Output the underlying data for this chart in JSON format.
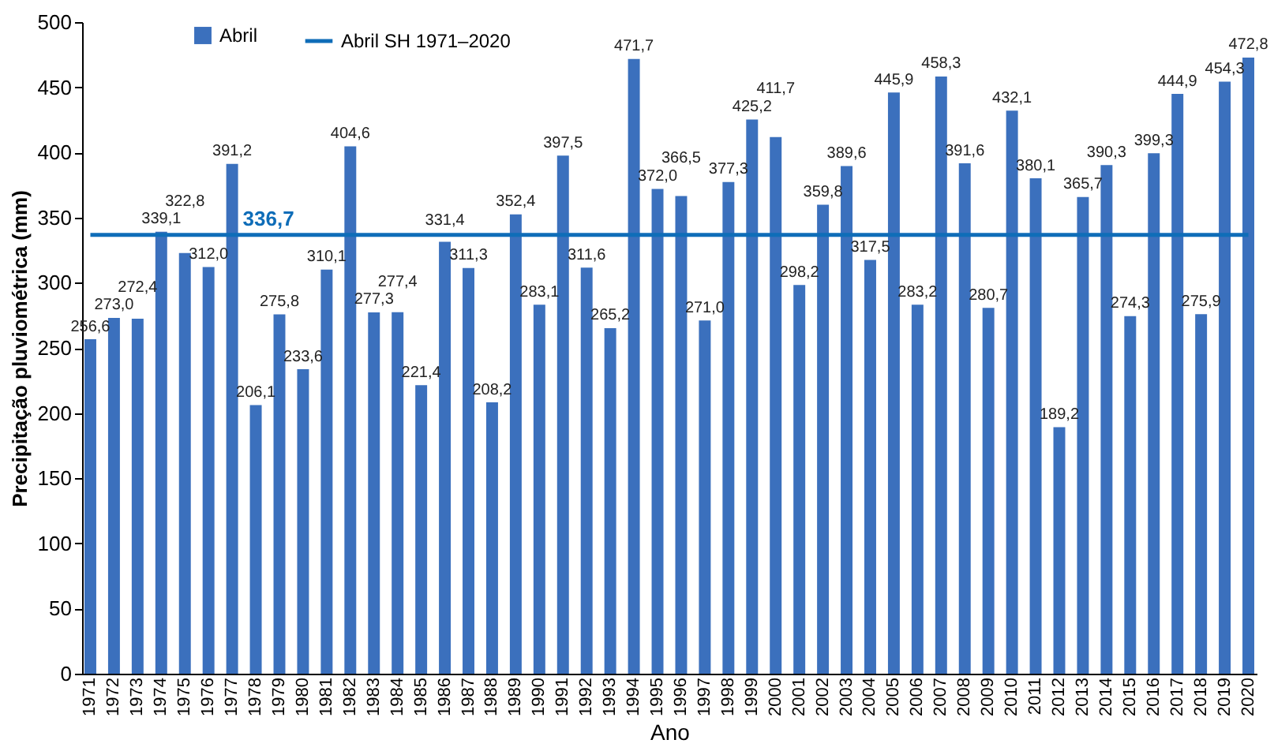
{
  "chart_data": {
    "type": "bar",
    "xlabel": "Ano",
    "ylabel": "Precipitação pluviométrica (mm)",
    "categories": [
      "1971",
      "1972",
      "1973",
      "1974",
      "1975",
      "1976",
      "1977",
      "1978",
      "1979",
      "1980",
      "1981",
      "1982",
      "1983",
      "1984",
      "1985",
      "1986",
      "1987",
      "1988",
      "1989",
      "1990",
      "1991",
      "1992",
      "1993",
      "1994",
      "1995",
      "1996",
      "1997",
      "1998",
      "1999",
      "2000",
      "2001",
      "2002",
      "2003",
      "2004",
      "2005",
      "2006",
      "2007",
      "2008",
      "2009",
      "2010",
      "2011",
      "2012",
      "2013",
      "2014",
      "2015",
      "2016",
      "2017",
      "2018",
      "2019",
      "2020"
    ],
    "series": [
      {
        "name": "Abril",
        "color": "#3b70bd",
        "values": [
          256.6,
          273.0,
          272.4,
          339.1,
          322.8,
          312.0,
          391.2,
          206.1,
          275.8,
          233.6,
          310.1,
          404.6,
          277.3,
          277.4,
          221.4,
          331.4,
          311.3,
          208.2,
          352.4,
          283.1,
          397.5,
          311.6,
          265.2,
          471.7,
          372.0,
          366.5,
          271.0,
          377.3,
          425.2,
          411.7,
          298.2,
          359.8,
          389.6,
          317.5,
          445.9,
          283.2,
          458.3,
          391.6,
          280.7,
          432.1,
          380.1,
          189.2,
          365.7,
          390.3,
          274.3,
          399.3,
          444.9,
          275.9,
          454.3,
          472.8
        ],
        "value_labels": [
          "256,6",
          "273,0",
          "272,4",
          "339,1",
          "322,8",
          "312,0",
          "391,2",
          "206,1",
          "275,8",
          "233,6",
          "310,1",
          "404,6",
          "277,3",
          "277,4",
          "221,4",
          "331,4",
          "311,3",
          "208,2",
          "352,4",
          "283,1",
          "397,5",
          "311,6",
          "265,2",
          "471,7",
          "372,0",
          "366,5",
          "271,0",
          "377,3",
          "425,2",
          "411,7",
          "298,2",
          "359,8",
          "389,6",
          "317,5",
          "445,9",
          "283,2",
          "458,3",
          "391,6",
          "280,7",
          "432,1",
          "380,1",
          "189,2",
          "365,7",
          "390,3",
          "274,3",
          "399,3",
          "444,9",
          "275,9",
          "454,3",
          "472,8"
        ]
      },
      {
        "name": "Abril SH 1971–2020",
        "type": "line",
        "color": "#0f6db8",
        "values": [
          336.7,
          336.7,
          336.7,
          336.7,
          336.7,
          336.7,
          336.7,
          336.7,
          336.7,
          336.7,
          336.7,
          336.7,
          336.7,
          336.7,
          336.7,
          336.7,
          336.7,
          336.7,
          336.7,
          336.7,
          336.7,
          336.7,
          336.7,
          336.7,
          336.7,
          336.7,
          336.7,
          336.7,
          336.7,
          336.7,
          336.7,
          336.7,
          336.7,
          336.7,
          336.7,
          336.7,
          336.7,
          336.7,
          336.7,
          336.7,
          336.7,
          336.7,
          336.7,
          336.7,
          336.7,
          336.7,
          336.7,
          336.7,
          336.7,
          336.7
        ]
      }
    ],
    "annotations": [
      {
        "text": "336,7",
        "x": "1978",
        "y": 336.7
      }
    ],
    "ylim": [
      0,
      500
    ],
    "yticks": [
      0,
      50,
      100,
      150,
      200,
      250,
      300,
      350,
      400,
      450,
      500
    ],
    "grid": false,
    "legend": "top left"
  }
}
